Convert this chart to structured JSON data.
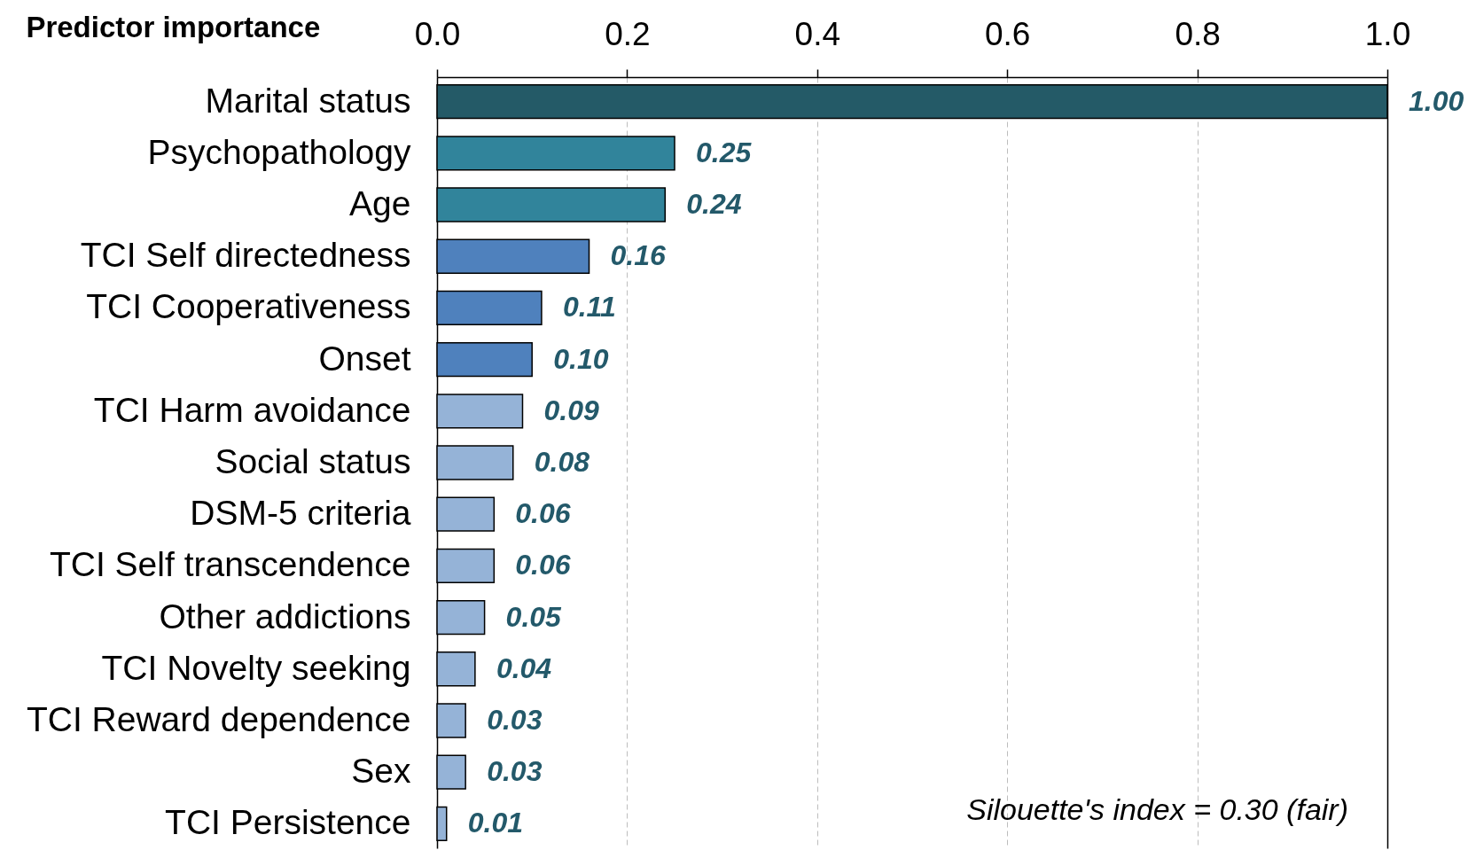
{
  "chart_data": {
    "type": "bar",
    "orientation": "horizontal",
    "title": "Predictor importance",
    "categories": [
      "Marital status",
      "Psychopathology",
      "Age",
      "TCI Self directedness",
      "TCI Cooperativeness",
      "Onset",
      "TCI Harm avoidance",
      "Social status",
      "DSM-5 criteria",
      "TCI Self transcendence",
      "Other addictions",
      "TCI Novelty seeking",
      "TCI Reward dependence",
      "Sex",
      "TCI Persistence"
    ],
    "values": [
      1.0,
      0.25,
      0.24,
      0.16,
      0.11,
      0.1,
      0.09,
      0.08,
      0.06,
      0.06,
      0.05,
      0.04,
      0.03,
      0.03,
      0.01
    ],
    "value_labels": [
      "1.00",
      "0.25",
      "0.24",
      "0.16",
      "0.11",
      "0.10",
      "0.09",
      "0.08",
      "0.06",
      "0.06",
      "0.05",
      "0.04",
      "0.03",
      "0.03",
      "0.01"
    ],
    "colors": [
      "#245a67",
      "#31849b",
      "#31849b",
      "#4f81bd",
      "#4f81bd",
      "#4f81bd",
      "#95b3d7",
      "#95b3d7",
      "#95b3d7",
      "#95b3d7",
      "#95b3d7",
      "#95b3d7",
      "#95b3d7",
      "#95b3d7",
      "#95b3d7"
    ],
    "xlim": [
      0,
      1
    ],
    "xticks": [
      {
        "value": 0,
        "label": "0.0"
      },
      0.2,
      0.4,
      0.6,
      0.8,
      {
        "value": 1,
        "label": "1.0"
      }
    ],
    "grid": "x",
    "annotations": [
      "Silouette's index = 0.30 (fair)"
    ]
  }
}
